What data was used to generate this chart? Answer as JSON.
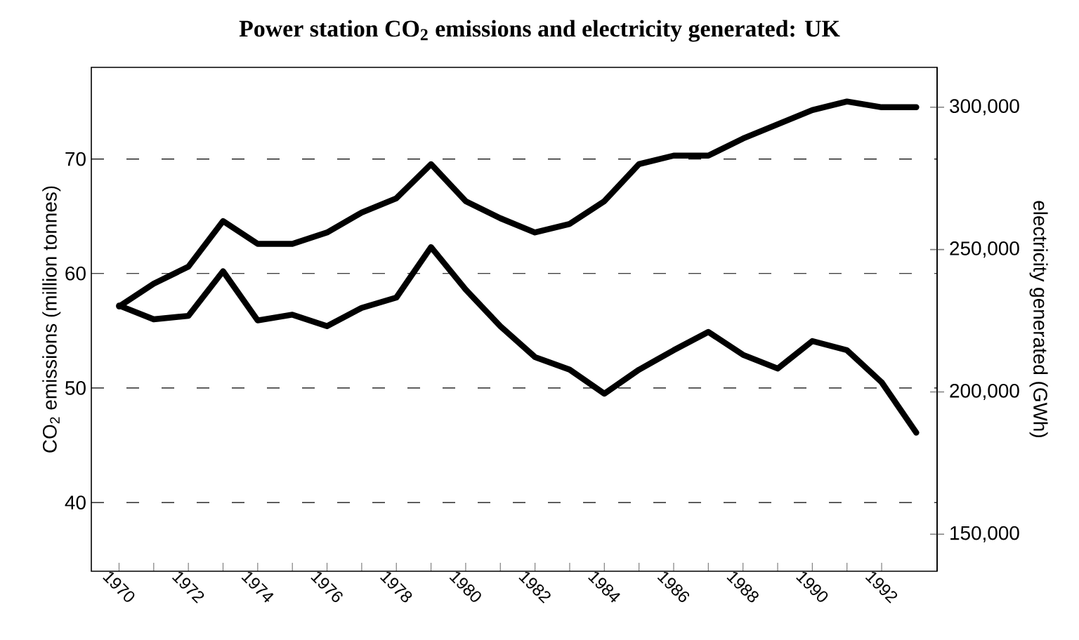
{
  "chart_data": {
    "type": "line",
    "title": "Power station CO$_{2}$ emissions and electricity generated: UK",
    "ylabel": "CO$_{2}$ emissions (million tonnes)",
    "y2label": "electricity generated (GWh)",
    "x": [
      1970,
      1971,
      1972,
      1973,
      1974,
      1975,
      1976,
      1977,
      1978,
      1979,
      1980,
      1981,
      1982,
      1983,
      1984,
      1985,
      1986,
      1987,
      1988,
      1989,
      1990,
      1991,
      1992,
      1993
    ],
    "xlim": [
      1969.2,
      1993.6
    ],
    "xticks": [
      1970,
      {
        "value": 1971,
        "label": null
      },
      1972,
      {
        "value": 1973,
        "label": null
      },
      1974,
      {
        "value": 1975,
        "label": null
      },
      1976,
      {
        "value": 1977,
        "label": null
      },
      1978,
      {
        "value": 1979,
        "label": null
      },
      1980,
      {
        "value": 1981,
        "label": null
      },
      1982,
      {
        "value": 1983,
        "label": null
      },
      1984,
      {
        "value": 1985,
        "label": null
      },
      1986,
      {
        "value": 1987,
        "label": null
      },
      1988,
      {
        "value": 1989,
        "label": null
      },
      1990,
      {
        "value": 1991,
        "label": null
      },
      1992
    ],
    "ylim": [
      34,
      78
    ],
    "yticks": [
      40,
      50,
      60,
      70
    ],
    "y2lim": [
      137000,
      314000
    ],
    "y2ticks": [
      {
        "value": 150000,
        "label": "150,000"
      },
      {
        "value": 200000,
        "label": "200,000"
      },
      {
        "value": 250000,
        "label": "250,000"
      },
      {
        "value": 300000,
        "label": "300,000"
      }
    ],
    "series": [
      {
        "color": "#000000",
        "values": [
          57.2,
          56.0,
          56.3,
          60.2,
          55.9,
          56.4,
          55.4,
          57.0,
          57.9,
          62.3,
          58.6,
          55.4,
          52.7,
          51.6,
          49.5,
          51.6,
          53.3,
          54.9,
          52.9,
          51.7,
          54.1,
          53.3,
          50.5,
          46.1
        ]
      },
      {
        "color": "#000000",
        "axis": "y2",
        "values": [
          230000,
          238000,
          244000,
          260000,
          252000,
          252000,
          256000,
          263000,
          268000,
          280000,
          267000,
          261000,
          256000,
          259000,
          267000,
          280000,
          283000,
          283000,
          289000,
          294000,
          299000,
          302000,
          300000,
          300000
        ]
      }
    ],
    "grid": "y",
    "line_style": "solid",
    "marker": "none"
  }
}
